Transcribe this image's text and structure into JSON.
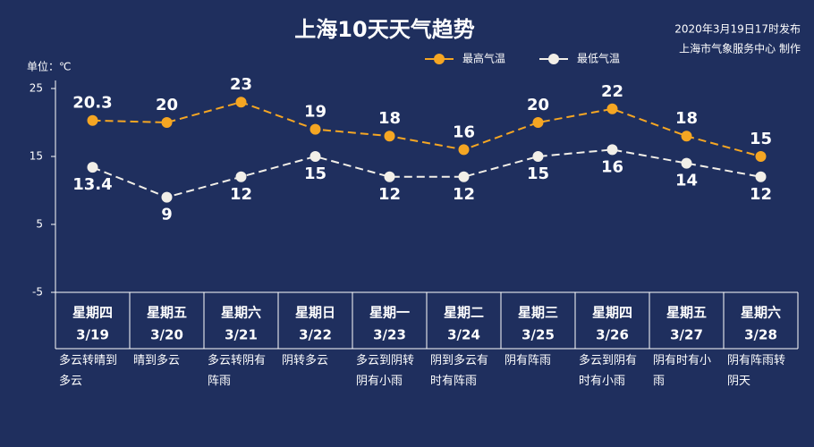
{
  "chart_data": {
    "type": "line",
    "title": "上海10天天气趋势",
    "subtitle": [
      "2020年3月19日17时发布",
      "上海市气象服务中心 制作"
    ],
    "y_label": "单位：℃",
    "categories": [
      "星期四",
      "星期五",
      "星期六",
      "星期日",
      "星期一",
      "星期二",
      "星期三",
      "星期四",
      "星期五",
      "星期六"
    ],
    "dates": [
      "3/19",
      "3/20",
      "3/21",
      "3/22",
      "3/23",
      "3/24",
      "3/25",
      "3/26",
      "3/27",
      "3/28"
    ],
    "weather": [
      "多云转晴到多云",
      "晴到多云",
      "多云转阴有阵雨",
      "阴转多云",
      "多云到阴转阴有小雨",
      "阴到多云有时有阵雨",
      "阴有阵雨",
      "多云到阴有时有小雨",
      "阴有时有小雨",
      "阴有阵雨转阴天"
    ],
    "series": [
      {
        "name": "最高气温",
        "color": "#f5a623",
        "values": [
          20.3,
          20,
          23,
          19,
          18,
          16,
          20,
          22,
          18,
          15
        ]
      },
      {
        "name": "最低气温",
        "color": "#f2efe8",
        "values": [
          13.4,
          9,
          12,
          15,
          12,
          12,
          15,
          16,
          14,
          12
        ]
      }
    ],
    "ylim": [
      -5,
      25
    ],
    "yticks": [
      -5,
      5,
      15,
      25
    ],
    "grid": false,
    "dashed": true
  }
}
